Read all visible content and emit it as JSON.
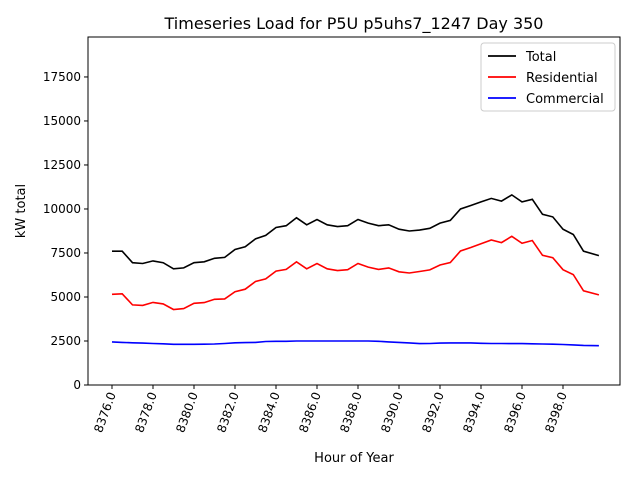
{
  "chart_data": {
    "type": "line",
    "title": "Timeseries Load for P5U p5uhs7_1247  Day 350",
    "xlabel": "Hour of Year",
    "ylabel": "kW total",
    "xlim": [
      8374.83,
      8400.78
    ],
    "ylim": [
      0,
      19770
    ],
    "grid": false,
    "legend_position": "top-right",
    "x_ticks": [
      8376,
      8378,
      8380,
      8382,
      8384,
      8386,
      8388,
      8390,
      8392,
      8394,
      8396,
      8398
    ],
    "x_tick_labels": [
      "8376.0",
      "8378.0",
      "8380.0",
      "8382.0",
      "8384.0",
      "8386.0",
      "8388.0",
      "8390.0",
      "8392.0",
      "8394.0",
      "8396.0",
      "8398.0"
    ],
    "y_ticks": [
      0,
      2500,
      5000,
      7500,
      10000,
      12500,
      15000,
      17500
    ],
    "y_tick_labels": [
      "0",
      "2500",
      "5000",
      "7500",
      "10000",
      "12500",
      "15000",
      "17500"
    ],
    "x": [
      8376,
      8376.5,
      8377,
      8377.5,
      8378,
      8378.5,
      8379,
      8379.5,
      8380,
      8380.5,
      8381,
      8381.5,
      8382,
      8382.5,
      8383,
      8383.5,
      8384,
      8384.5,
      8385,
      8385.5,
      8386,
      8386.5,
      8387,
      8387.5,
      8388,
      8388.5,
      8389,
      8389.5,
      8390,
      8390.5,
      8391,
      8391.5,
      8392,
      8392.5,
      8393,
      8393.5,
      8394,
      8394.5,
      8395,
      8395.5,
      8396,
      8396.5,
      8397,
      8397.5,
      8398,
      8398.5,
      8399,
      8399.75
    ],
    "series": [
      {
        "name": "Total",
        "color": "#000000",
        "values": [
          7600,
          7600,
          6950,
          6900,
          7050,
          6950,
          6600,
          6650,
          6950,
          7000,
          7200,
          7250,
          7700,
          7850,
          8300,
          8500,
          8950,
          9050,
          9500,
          9100,
          9400,
          9100,
          9000,
          9050,
          9400,
          9200,
          9050,
          9100,
          8850,
          8750,
          8800,
          8900,
          9200,
          9350,
          10000,
          10200,
          10400,
          10600,
          10450,
          10800,
          10400,
          10550,
          9700,
          9550,
          8850,
          8550,
          7600,
          7350
        ]
      },
      {
        "name": "Residential",
        "color": "#ff0000",
        "values": [
          5150,
          5180,
          4550,
          4520,
          4690,
          4610,
          4290,
          4340,
          4640,
          4680,
          4870,
          4890,
          5300,
          5440,
          5880,
          6030,
          6470,
          6570,
          7000,
          6600,
          6900,
          6600,
          6500,
          6550,
          6900,
          6700,
          6570,
          6650,
          6430,
          6360,
          6450,
          6540,
          6820,
          6960,
          7610,
          7810,
          8030,
          8240,
          8090,
          8450,
          8050,
          8210,
          7370,
          7230,
          6550,
          6270,
          5350,
          5120
        ]
      },
      {
        "name": "Commercial",
        "color": "#0000ff",
        "values": [
          2450,
          2420,
          2400,
          2380,
          2360,
          2340,
          2310,
          2310,
          2310,
          2320,
          2330,
          2360,
          2400,
          2410,
          2420,
          2470,
          2480,
          2480,
          2500,
          2500,
          2500,
          2500,
          2500,
          2500,
          2500,
          2500,
          2480,
          2450,
          2420,
          2390,
          2350,
          2360,
          2380,
          2390,
          2390,
          2390,
          2370,
          2360,
          2360,
          2350,
          2350,
          2340,
          2330,
          2320,
          2300,
          2280,
          2250,
          2230
        ]
      }
    ]
  }
}
